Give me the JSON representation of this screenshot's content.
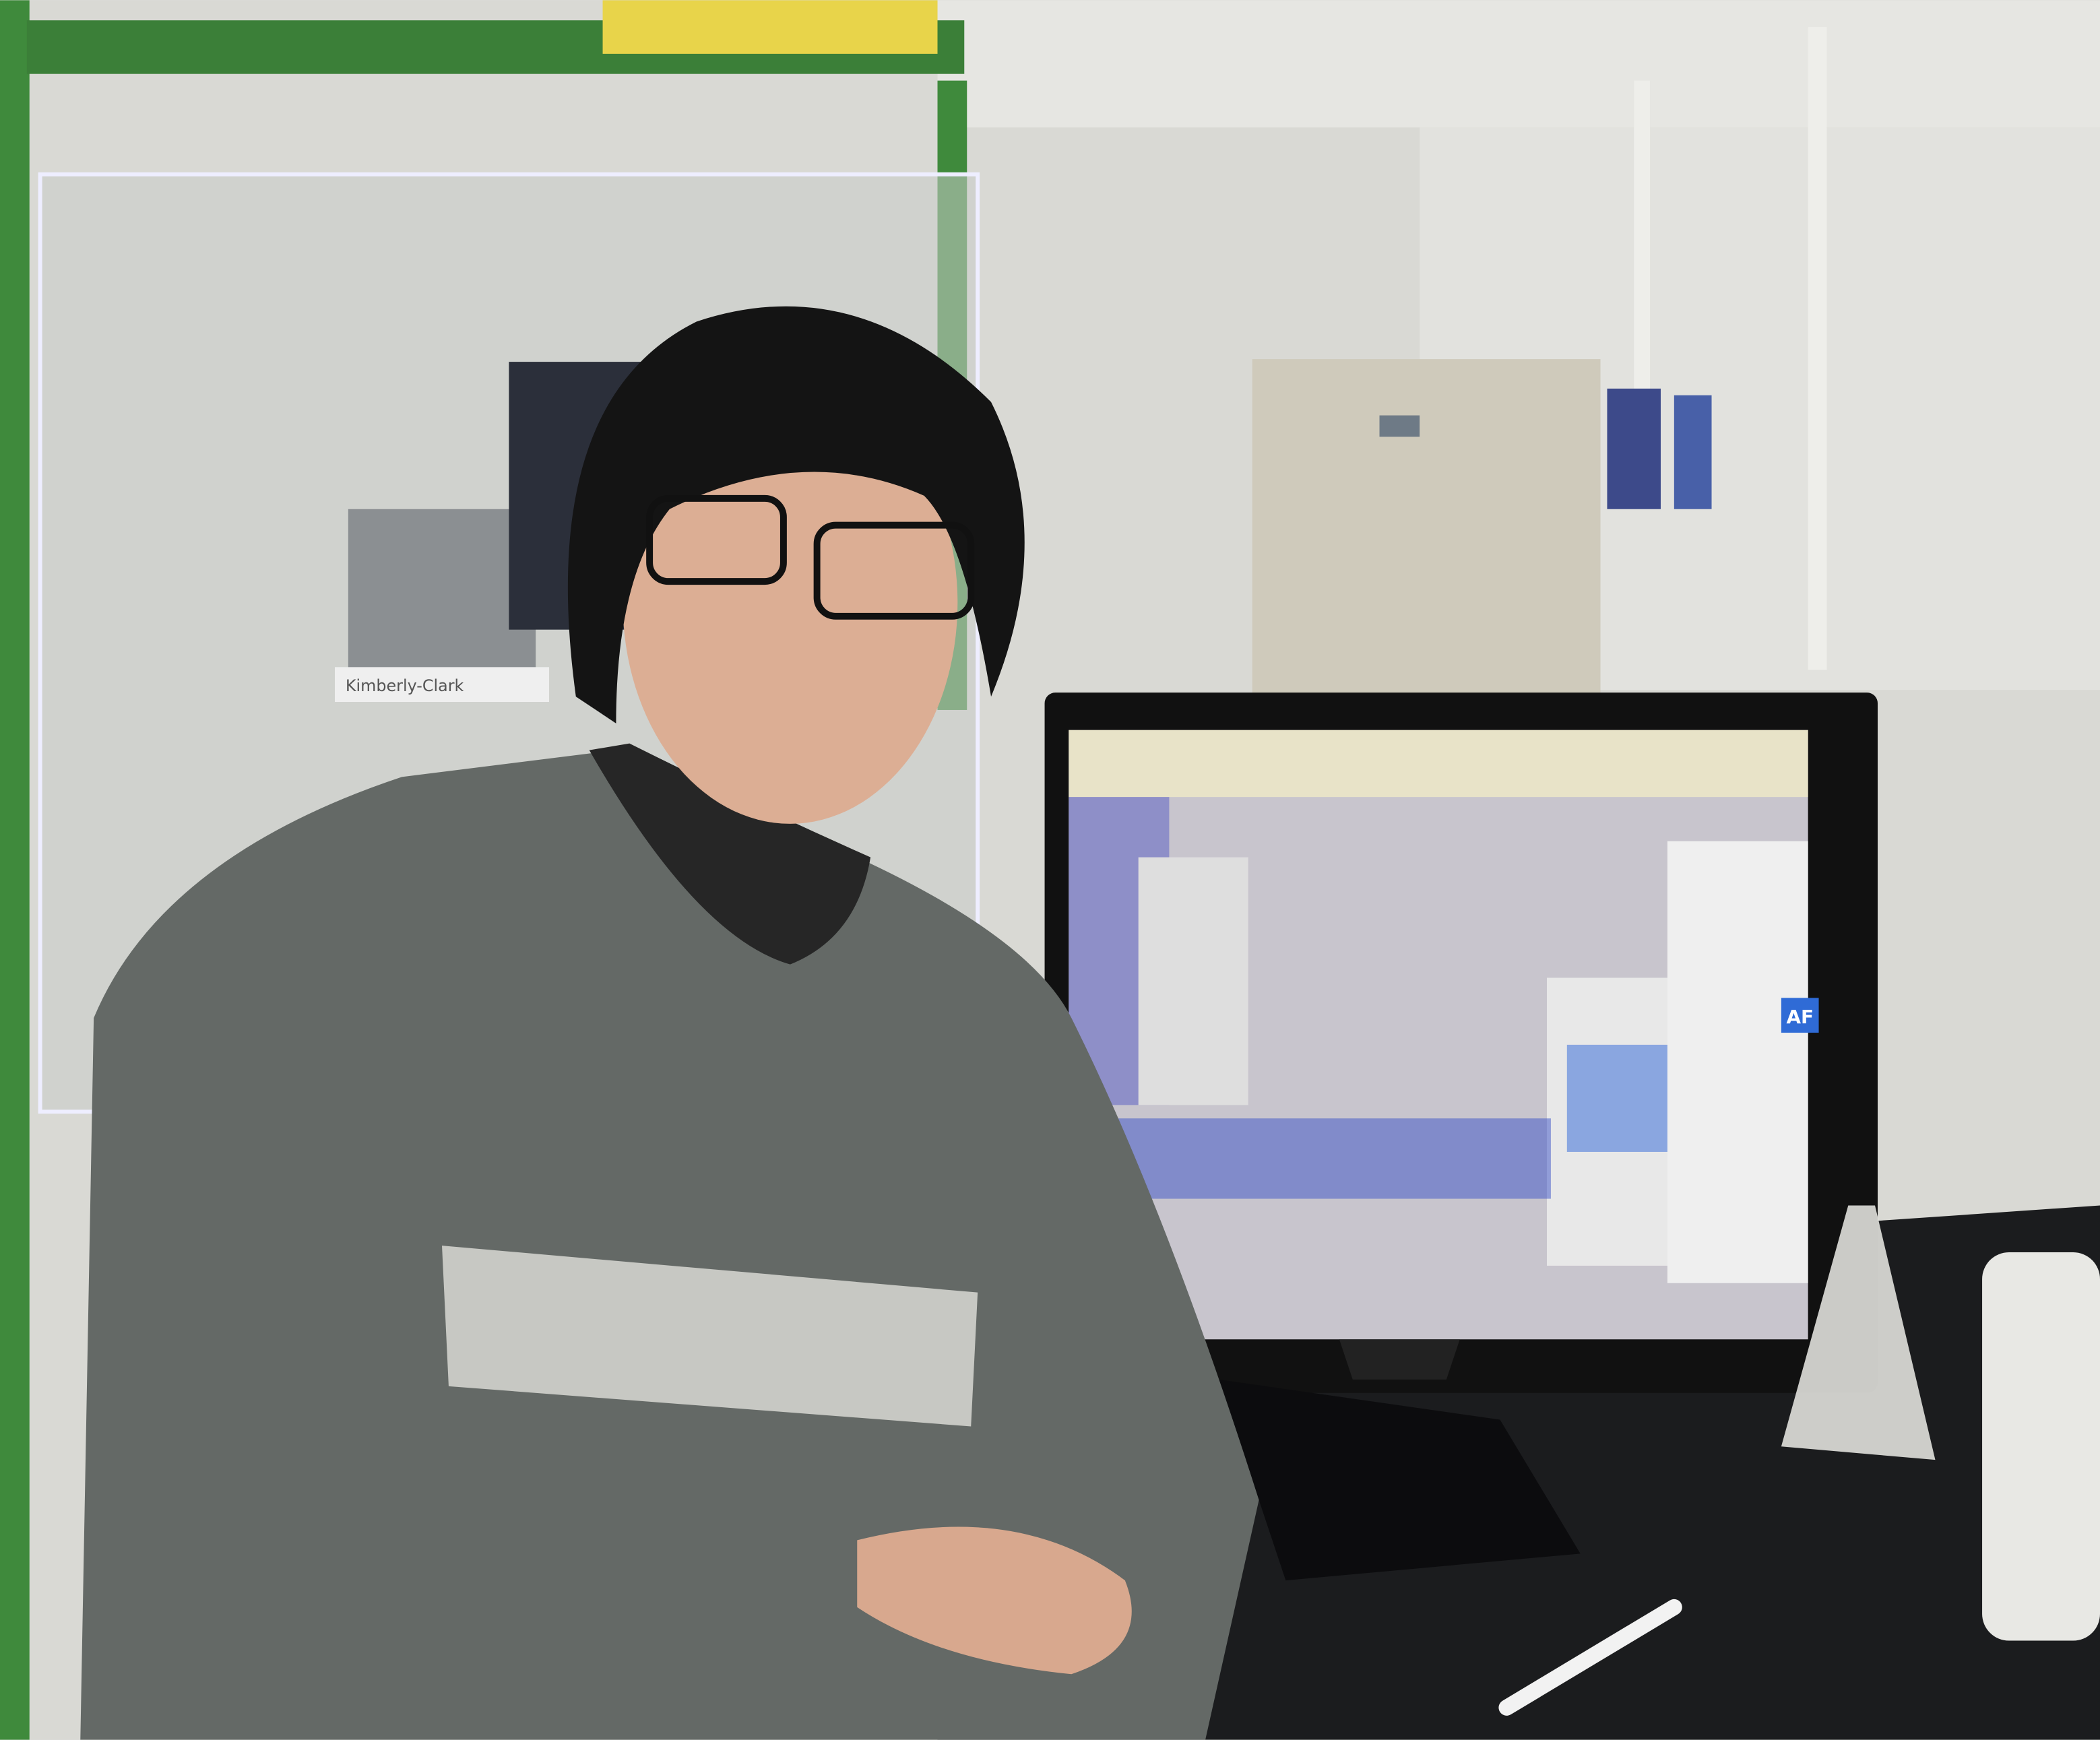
{
  "scene": {
    "labels": {
      "screen_button": "AF",
      "box_brand": "Kimberly-Clark"
    }
  }
}
